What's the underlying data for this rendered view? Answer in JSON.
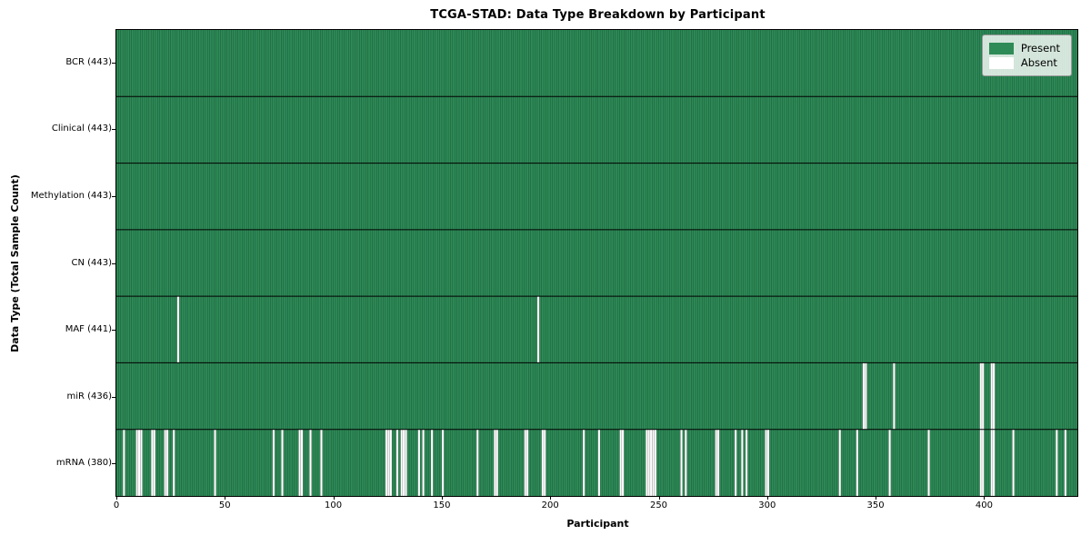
{
  "title": "TCGA-STAD: Data Type Breakdown by Participant",
  "xlabel": "Participant",
  "ylabel": "Data Type (Total Sample Count)",
  "colors": {
    "present": "#2e8b57",
    "absent": "#ffffff",
    "cell_edge": "#0d3524",
    "row_separator": "#000000",
    "legend_border": "#9a9a9a"
  },
  "legend": {
    "position": "upper right",
    "entries": [
      {
        "label": "Present",
        "color": "#2e8b57"
      },
      {
        "label": "Absent",
        "color": "#ffffff"
      }
    ]
  },
  "chart_data": {
    "type": "heatmap",
    "title": "TCGA-STAD: Data Type Breakdown by Participant",
    "xlabel": "Participant",
    "ylabel": "Data Type (Total Sample Count)",
    "n_participants": 443,
    "xlim": [
      0,
      443
    ],
    "x_ticks": [
      0,
      50,
      100,
      150,
      200,
      250,
      300,
      350,
      400
    ],
    "value_legend": {
      "present": 1,
      "absent": 0
    },
    "rows": [
      {
        "label": "BCR (443)",
        "name": "BCR",
        "total": 443,
        "absent": []
      },
      {
        "label": "Clinical (443)",
        "name": "Clinical",
        "total": 443,
        "absent": []
      },
      {
        "label": "Methylation (443)",
        "name": "Methylation",
        "total": 443,
        "absent": []
      },
      {
        "label": "CN (443)",
        "name": "CN",
        "total": 443,
        "absent": []
      },
      {
        "label": "MAF (441)",
        "name": "MAF",
        "total": 441,
        "absent": [
          28,
          194
        ]
      },
      {
        "label": "miR (436)",
        "name": "miR",
        "total": 436,
        "absent": [
          344,
          345,
          358,
          398,
          399,
          403,
          404
        ]
      },
      {
        "label": "mRNA (380)",
        "name": "mRNA",
        "total": 380,
        "absent": [
          3,
          9,
          10,
          11,
          16,
          17,
          22,
          23,
          26,
          45,
          72,
          76,
          84,
          85,
          89,
          94,
          124,
          125,
          126,
          129,
          131,
          132,
          133,
          139,
          141,
          145,
          150,
          166,
          174,
          175,
          188,
          189,
          196,
          197,
          215,
          222,
          232,
          233,
          244,
          245,
          246,
          247,
          248,
          260,
          262,
          276,
          277,
          285,
          288,
          290,
          299,
          300,
          333,
          341,
          356,
          374,
          398,
          399,
          403,
          404,
          413,
          433,
          437
        ]
      }
    ]
  }
}
